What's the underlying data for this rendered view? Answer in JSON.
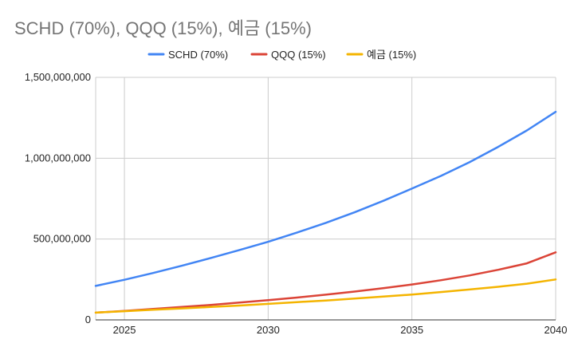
{
  "chart_data": {
    "type": "line",
    "title": "SCHD (70%), QQQ (15%), 예금 (15%)",
    "xlabel": "",
    "ylabel": "",
    "xlim": [
      2024,
      2040
    ],
    "ylim": [
      0,
      1500000000
    ],
    "x_ticks": [
      2025,
      2030,
      2035,
      2040
    ],
    "x_tick_labels": [
      "2025",
      "2030",
      "2035",
      "2040"
    ],
    "y_ticks": [
      0,
      500000000,
      1000000000,
      1500000000
    ],
    "y_tick_labels": [
      "0",
      "500,000,000",
      "1,000,000,000",
      "1,500,000,000"
    ],
    "grid": true,
    "legend_position": "top",
    "x": [
      2024,
      2025,
      2026,
      2027,
      2028,
      2029,
      2030,
      2031,
      2032,
      2033,
      2034,
      2035,
      2036,
      2037,
      2038,
      2039,
      2040
    ],
    "series": [
      {
        "name": "SCHD (70%)",
        "color": "#4285f4",
        "values": [
          210000000,
          248000000,
          290000000,
          335000000,
          383000000,
          432000000,
          483000000,
          540000000,
          600000000,
          665000000,
          736000000,
          812000000,
          890000000,
          975000000,
          1070000000,
          1172000000,
          1287000000
        ]
      },
      {
        "name": "QQQ (15%)",
        "color": "#db4437",
        "values": [
          45000000,
          56000000,
          68000000,
          80000000,
          93000000,
          107000000,
          122000000,
          138000000,
          156000000,
          175000000,
          196000000,
          219000000,
          245000000,
          275000000,
          310000000,
          350000000,
          418000000
        ]
      },
      {
        "name": "예금 (15%)",
        "color": "#f4b400",
        "values": [
          45000000,
          54000000,
          63000000,
          71000000,
          80000000,
          89000000,
          99000000,
          110000000,
          120000000,
          132000000,
          144000000,
          157000000,
          172000000,
          188000000,
          205000000,
          224000000,
          250000000
        ]
      }
    ]
  }
}
